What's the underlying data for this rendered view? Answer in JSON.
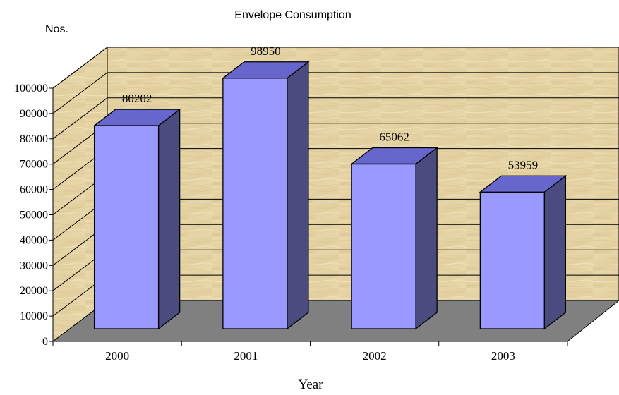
{
  "chart_data": {
    "type": "bar",
    "title": "Envelope Consumption",
    "ylabel": "Nos.",
    "xlabel": "Year",
    "categories": [
      "2000",
      "2001",
      "2002",
      "2003"
    ],
    "values": [
      80202,
      98950,
      65062,
      53959
    ],
    "data_labels": [
      "80202",
      "98950",
      "65062",
      "53959"
    ],
    "ylim": [
      0,
      100000
    ],
    "yticks": [
      "0",
      "10000",
      "20000",
      "30000",
      "40000",
      "50000",
      "60000",
      "70000",
      "80000",
      "90000",
      "100000"
    ],
    "grid": true,
    "style": "3d-column",
    "colors": {
      "bar_front": "#9999FF",
      "bar_top": "#6666CC",
      "bar_side": "#4B4B80",
      "floor": "#7F7F7F",
      "wall": "#E4D2A4",
      "wall_line": "#000000"
    }
  }
}
